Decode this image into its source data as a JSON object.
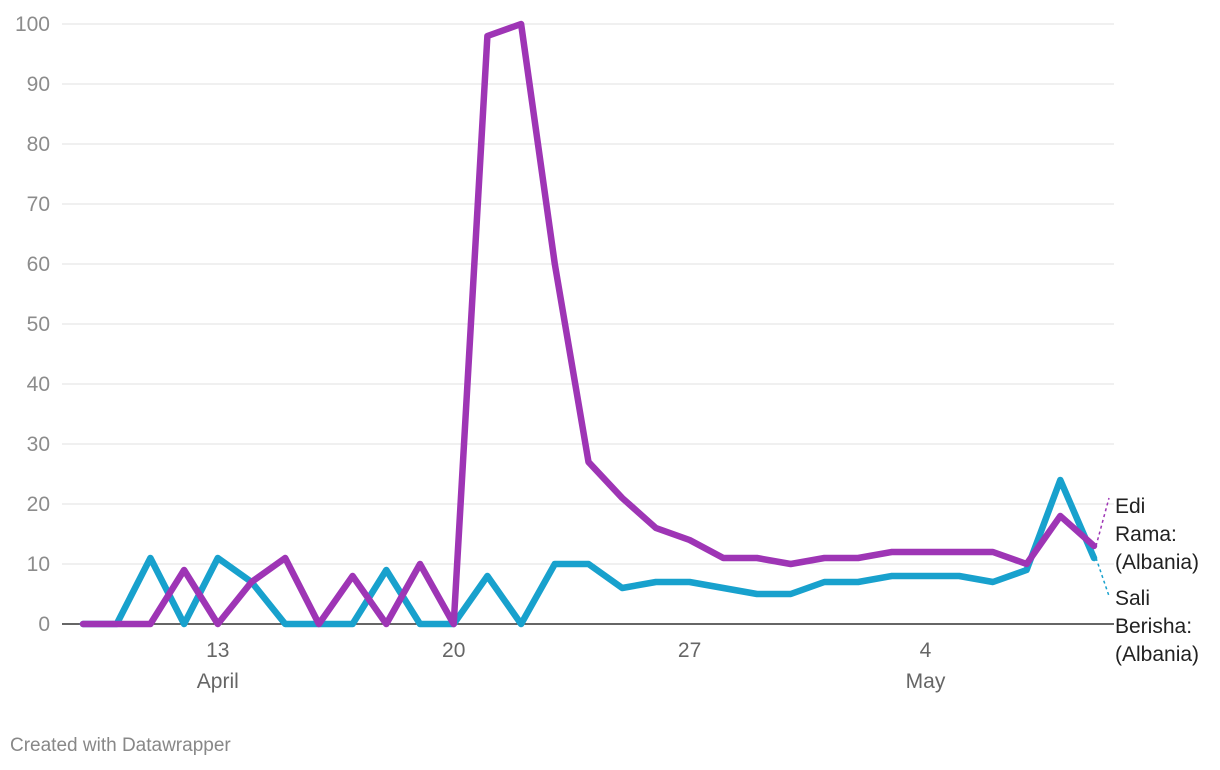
{
  "chart_data": {
    "type": "line",
    "x": [
      "2020-04-09",
      "2020-04-10",
      "2020-04-11",
      "2020-04-12",
      "2020-04-13",
      "2020-04-14",
      "2020-04-15",
      "2020-04-16",
      "2020-04-17",
      "2020-04-18",
      "2020-04-19",
      "2020-04-20",
      "2020-04-21",
      "2020-04-22",
      "2020-04-23",
      "2020-04-24",
      "2020-04-25",
      "2020-04-26",
      "2020-04-27",
      "2020-04-28",
      "2020-04-29",
      "2020-04-30",
      "2020-05-01",
      "2020-05-02",
      "2020-05-03",
      "2020-05-04",
      "2020-05-05",
      "2020-05-06",
      "2020-05-07",
      "2020-05-08",
      "2020-05-09"
    ],
    "ylim": [
      0,
      100
    ],
    "yticks": [
      "0",
      "10",
      "20",
      "30",
      "40",
      "50",
      "60",
      "70",
      "80",
      "90",
      "100"
    ],
    "xticks": [
      {
        "date": "2020-04-13",
        "label": "13",
        "sublabel": "April"
      },
      {
        "date": "2020-04-20",
        "label": "20",
        "sublabel": ""
      },
      {
        "date": "2020-04-27",
        "label": "27",
        "sublabel": ""
      },
      {
        "date": "2020-05-04",
        "label": "4",
        "sublabel": "May"
      }
    ],
    "grid": true,
    "series": [
      {
        "name": "Sali Berisha: (Albania)",
        "label_lines": [
          "Sali",
          "Berisha:",
          "(Albania)"
        ],
        "color": "#18a1cd",
        "values": [
          0,
          0,
          11,
          0,
          11,
          7,
          0,
          0,
          0,
          9,
          0,
          0,
          8,
          0,
          10,
          10,
          6,
          7,
          7,
          6,
          5,
          5,
          7,
          7,
          8,
          8,
          8,
          7,
          9,
          24,
          11
        ]
      },
      {
        "name": "Edi Rama: (Albania)",
        "label_lines": [
          "Edi",
          "Rama:",
          "(Albania)"
        ],
        "color": "#9e35b5",
        "values": [
          0,
          0,
          0,
          9,
          0,
          7,
          11,
          0,
          8,
          0,
          10,
          0,
          98,
          100,
          60,
          27,
          21,
          16,
          14,
          11,
          11,
          10,
          11,
          11,
          12,
          12,
          12,
          12,
          10,
          18,
          13
        ]
      }
    ]
  },
  "footer": {
    "credit": "Created with Datawrapper"
  }
}
